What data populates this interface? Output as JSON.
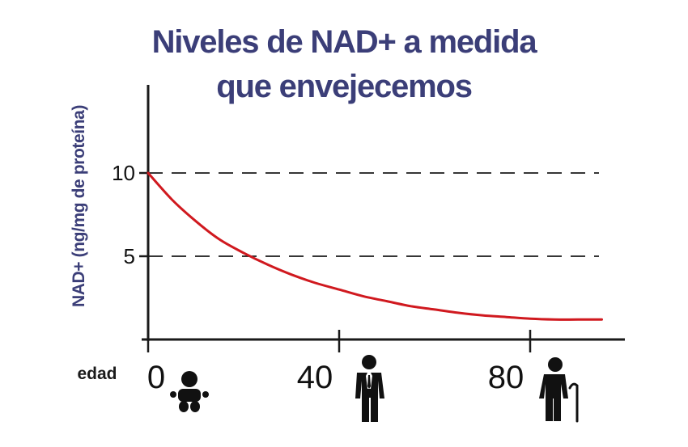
{
  "colors": {
    "title": "#3b3e78",
    "axis": "#1a1a1a",
    "curve": "#d0191f",
    "gridline": "#1a1a1a",
    "icon": "#111111"
  },
  "icons": {
    "age_0": "baby-icon",
    "age_40": "adult-man-icon",
    "age_80": "elderly-man-with-cane-icon"
  },
  "chart_data": {
    "type": "line",
    "title_lines": [
      "Niveles de NAD+ a medida",
      "que envejecemos"
    ],
    "xlabel": "edad",
    "ylabel": "NAD+ (ng/mg de proteína)",
    "x_ticks": [
      0,
      40,
      80
    ],
    "x_tick_labels": [
      "0",
      "40",
      "80"
    ],
    "y_ticks": [
      5,
      10
    ],
    "y_tick_labels": [
      "5",
      "10"
    ],
    "xlim": [
      0,
      100
    ],
    "ylim": [
      0,
      14.5
    ],
    "grid": "dashed horizontal lines at y = 5 and y = 10",
    "legend": "none",
    "series": [
      {
        "x": [
          0,
          5,
          10,
          15,
          20,
          25,
          30,
          35,
          40,
          45,
          50,
          55,
          60,
          65,
          70,
          75,
          80,
          85,
          90,
          95
        ],
        "y": [
          10.0,
          8.4,
          7.1,
          6.0,
          5.2,
          4.5,
          3.9,
          3.4,
          3.0,
          2.6,
          2.3,
          2.0,
          1.8,
          1.6,
          1.45,
          1.35,
          1.25,
          1.2,
          1.2,
          1.2
        ]
      }
    ]
  }
}
